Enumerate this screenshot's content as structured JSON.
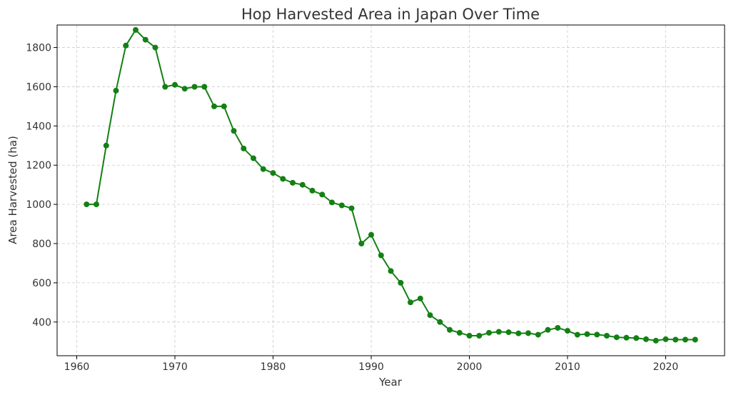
{
  "chart_data": {
    "type": "line",
    "title": "Hop Harvested Area in Japan Over Time",
    "xlabel": "Year",
    "ylabel": "Area Harvested (ha)",
    "xlim": [
      1958,
      2026
    ],
    "ylim": [
      228,
      1915
    ],
    "xticks": [
      "1960",
      "1970",
      "1980",
      "1990",
      "2000",
      "2010",
      "2020"
    ],
    "yticks": [
      "400",
      "600",
      "800",
      "1000",
      "1200",
      "1400",
      "1600",
      "1800"
    ],
    "grid": true,
    "legend": "none",
    "line_color": "#138013",
    "series": [
      {
        "x": [
          1961,
          1962,
          1963,
          1964,
          1965,
          1966,
          1967,
          1968,
          1969,
          1970,
          1971,
          1972,
          1973,
          1974,
          1975,
          1976,
          1977,
          1978,
          1979,
          1980,
          1981,
          1982,
          1983,
          1984,
          1985,
          1986,
          1987,
          1988,
          1989,
          1990,
          1991,
          1992,
          1993,
          1994,
          1995,
          1996,
          1997,
          1998,
          1999,
          2000,
          2001,
          2002,
          2003,
          2004,
          2005,
          2006,
          2007,
          2008,
          2009,
          2010,
          2011,
          2012,
          2013,
          2014,
          2015,
          2016,
          2017,
          2018,
          2019,
          2020,
          2021,
          2022,
          2023
        ],
        "values": [
          1000,
          1000,
          1300,
          1580,
          1810,
          1890,
          1840,
          1800,
          1600,
          1610,
          1590,
          1600,
          1600,
          1500,
          1500,
          1375,
          1285,
          1235,
          1180,
          1160,
          1130,
          1110,
          1100,
          1070,
          1050,
          1010,
          995,
          980,
          800,
          845,
          740,
          660,
          600,
          500,
          520,
          435,
          400,
          360,
          345,
          330,
          330,
          345,
          350,
          348,
          342,
          343,
          335,
          360,
          370,
          355,
          335,
          338,
          336,
          330,
          322,
          320,
          318,
          312,
          305,
          312,
          310,
          310,
          310
        ]
      }
    ]
  }
}
